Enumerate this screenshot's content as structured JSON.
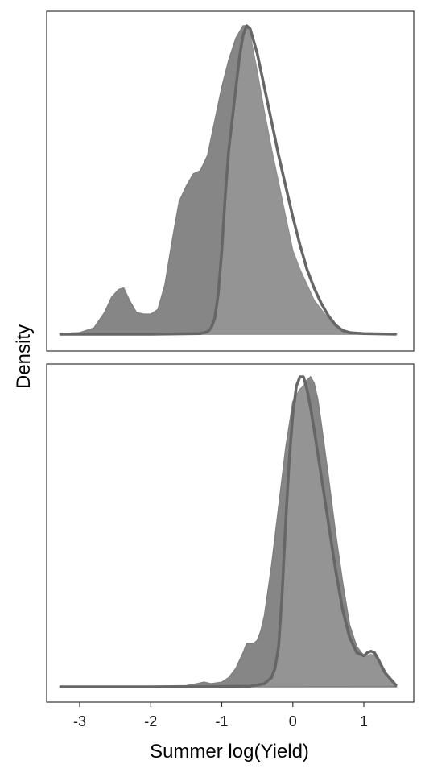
{
  "chart_data": {
    "type": "area",
    "title": "",
    "xlabel": "Summer log(Yield)",
    "ylabel": "Density",
    "xlim": [
      -3.28,
      1.46
    ],
    "x_ticks": [
      -3,
      -2,
      -1,
      0,
      1
    ],
    "x_tick_labels": [
      "-3",
      "-2",
      "-1",
      "0",
      "1"
    ],
    "grid": false,
    "legend": "none",
    "panels": [
      {
        "ylim": [
          0,
          1.05
        ],
        "series": [
          {
            "style": "filled",
            "color": "#808080",
            "x": [
              -3.28,
              -3.0,
              -2.8,
              -2.65,
              -2.55,
              -2.45,
              -2.38,
              -2.3,
              -2.2,
              -2.1,
              -2.0,
              -1.9,
              -1.8,
              -1.7,
              -1.6,
              -1.5,
              -1.4,
              -1.3,
              -1.2,
              -1.1,
              -1.0,
              -0.9,
              -0.8,
              -0.7,
              -0.65,
              -0.6,
              -0.5,
              -0.4,
              -0.3,
              -0.2,
              -0.1,
              0.0,
              0.1,
              0.2,
              0.3,
              0.4,
              0.5,
              0.6,
              0.7,
              0.8,
              0.9,
              1.0,
              1.46
            ],
            "y": [
              0.002,
              0.005,
              0.02,
              0.07,
              0.12,
              0.145,
              0.15,
              0.11,
              0.07,
              0.065,
              0.065,
              0.08,
              0.16,
              0.3,
              0.43,
              0.48,
              0.52,
              0.53,
              0.58,
              0.69,
              0.8,
              0.89,
              0.96,
              1.0,
              1.0,
              0.97,
              0.85,
              0.72,
              0.6,
              0.49,
              0.38,
              0.27,
              0.21,
              0.16,
              0.11,
              0.08,
              0.05,
              0.025,
              0.015,
              0.008,
              0.004,
              0.002,
              0.001
            ]
          },
          {
            "style": "outline",
            "color": "#666666",
            "x": [
              -3.28,
              -2.0,
              -1.3,
              -1.2,
              -1.15,
              -1.1,
              -1.05,
              -1.0,
              -0.95,
              -0.9,
              -0.8,
              -0.75,
              -0.7,
              -0.65,
              -0.6,
              -0.5,
              -0.4,
              -0.3,
              -0.2,
              -0.1,
              0.0,
              0.1,
              0.2,
              0.3,
              0.4,
              0.5,
              0.6,
              0.7,
              0.8,
              1.0,
              1.46
            ],
            "y": [
              0.0,
              0.0,
              0.002,
              0.008,
              0.02,
              0.05,
              0.13,
              0.27,
              0.45,
              0.6,
              0.8,
              0.9,
              0.97,
              1.0,
              0.99,
              0.91,
              0.8,
              0.69,
              0.58,
              0.48,
              0.38,
              0.29,
              0.21,
              0.15,
              0.1,
              0.06,
              0.03,
              0.012,
              0.005,
              0.002,
              0.0
            ]
          }
        ]
      },
      {
        "ylim": [
          0,
          1.05
        ],
        "series": [
          {
            "style": "filled",
            "color": "#808080",
            "x": [
              -3.28,
              -2.0,
              -1.5,
              -1.35,
              -1.25,
              -1.15,
              -1.0,
              -0.9,
              -0.8,
              -0.7,
              -0.65,
              -0.6,
              -0.55,
              -0.5,
              -0.45,
              -0.4,
              -0.3,
              -0.2,
              -0.1,
              0.0,
              0.1,
              0.15,
              0.2,
              0.25,
              0.3,
              0.35,
              0.4,
              0.5,
              0.6,
              0.7,
              0.8,
              0.9,
              1.0,
              1.05,
              1.1,
              1.15,
              1.2,
              1.3,
              1.46
            ],
            "y": [
              0.001,
              0.002,
              0.004,
              0.01,
              0.015,
              0.01,
              0.015,
              0.03,
              0.06,
              0.11,
              0.14,
              0.14,
              0.14,
              0.15,
              0.18,
              0.23,
              0.39,
              0.58,
              0.77,
              0.92,
              0.96,
              0.97,
              0.99,
              1.0,
              0.98,
              0.93,
              0.85,
              0.68,
              0.5,
              0.34,
              0.2,
              0.13,
              0.1,
              0.1,
              0.105,
              0.1,
              0.085,
              0.04,
              0.005
            ]
          },
          {
            "style": "outline",
            "color": "#666666",
            "x": [
              -3.28,
              -1.5,
              -0.6,
              -0.4,
              -0.3,
              -0.25,
              -0.2,
              -0.15,
              -0.1,
              -0.05,
              0.0,
              0.05,
              0.1,
              0.15,
              0.2,
              0.25,
              0.3,
              0.4,
              0.5,
              0.6,
              0.7,
              0.8,
              0.9,
              1.0,
              1.05,
              1.1,
              1.15,
              1.2,
              1.3,
              1.46
            ],
            "y": [
              0.0,
              0.0,
              0.002,
              0.01,
              0.03,
              0.06,
              0.13,
              0.3,
              0.53,
              0.73,
              0.88,
              0.97,
              1.0,
              1.0,
              0.96,
              0.9,
              0.83,
              0.68,
              0.53,
              0.38,
              0.25,
              0.16,
              0.11,
              0.1,
              0.11,
              0.115,
              0.11,
              0.09,
              0.045,
              0.003
            ]
          }
        ]
      }
    ]
  }
}
